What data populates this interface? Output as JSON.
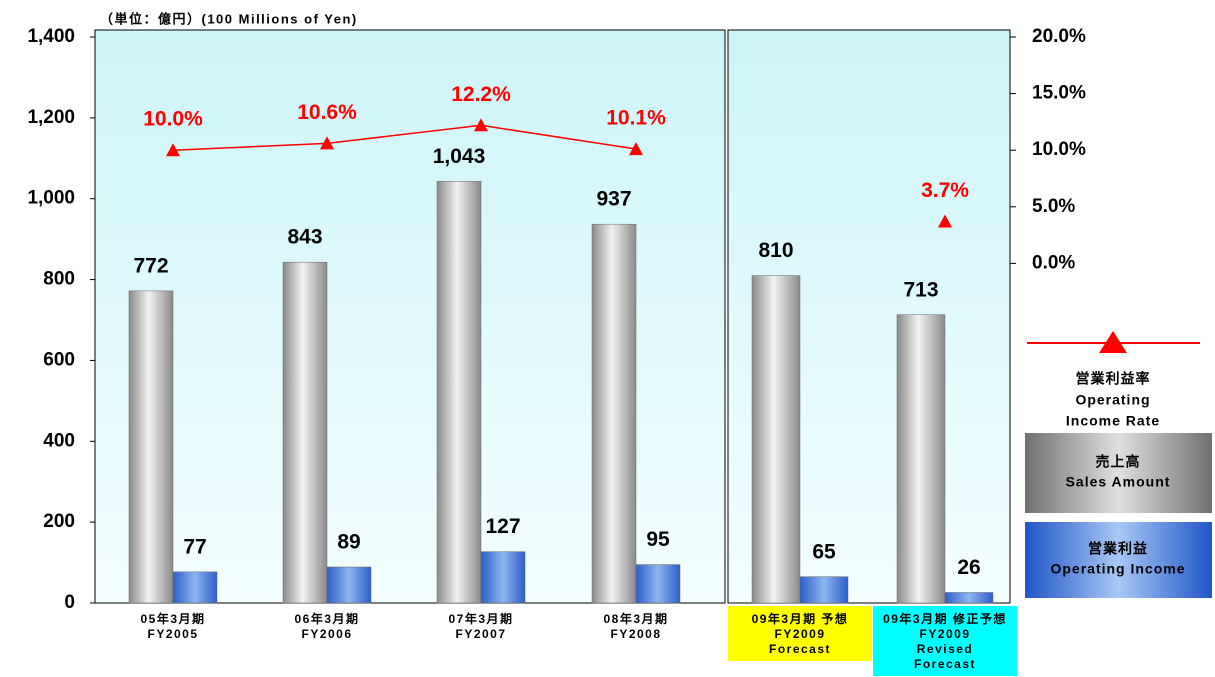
{
  "chart_data": {
    "type": "bar",
    "unit_label": "（単位：億円）(100 Millions of Yen)",
    "categories": [
      [
        "05年3月期",
        "FY2005"
      ],
      [
        "06年3月期",
        "FY2006"
      ],
      [
        "07年3月期",
        "FY2007"
      ],
      [
        "08年3月期",
        "FY2008"
      ],
      [
        "09年3月期 予想",
        "FY2009",
        "Forecast"
      ],
      [
        "09年3月期 修正予想",
        "FY2009",
        "Revised",
        "Forecast"
      ]
    ],
    "category_colors": [
      null,
      null,
      null,
      null,
      "#ffff00",
      "#00ffff"
    ],
    "series": [
      {
        "name": [
          "売上高",
          "Sales Amount"
        ],
        "color": "#a0a0a0",
        "values": [
          772,
          843,
          1043,
          937,
          810,
          713
        ],
        "value_labels": [
          "772",
          "843",
          "1,043",
          "937",
          "810",
          "713"
        ]
      },
      {
        "name": [
          "営業利益",
          "Operating Income"
        ],
        "color": "#3a6fd8",
        "values": [
          77,
          89,
          127,
          95,
          65,
          26
        ]
      },
      {
        "name": [
          "営業利益率",
          "Operating",
          "Income Rate"
        ],
        "color": "#ff0000",
        "type": "line",
        "axis": "y2",
        "values": [
          10.0,
          10.6,
          12.2,
          10.1,
          null,
          3.7
        ],
        "value_labels": [
          "10.0%",
          "10.6%",
          "12.2%",
          "10.1%",
          null,
          "3.7%"
        ]
      }
    ],
    "ylim": [
      0,
      1400
    ],
    "yticks": [
      0,
      {
        "value": 200,
        "label": "200"
      },
      400,
      600,
      800,
      {
        "value": 1000,
        "label": "1,000"
      },
      {
        "value": 1200,
        "label": "1,200"
      },
      {
        "value": 1400,
        "label": "1,400"
      }
    ],
    "y2lim": [
      -30,
      20
    ],
    "y2ticks": [
      {
        "value": 0,
        "label": "0.0%"
      },
      {
        "value": 5,
        "label": "5.0%"
      },
      {
        "value": 10,
        "label": "10.0%"
      },
      {
        "value": 15,
        "label": "15.0%"
      },
      {
        "value": 20,
        "label": "20.0%"
      }
    ]
  }
}
